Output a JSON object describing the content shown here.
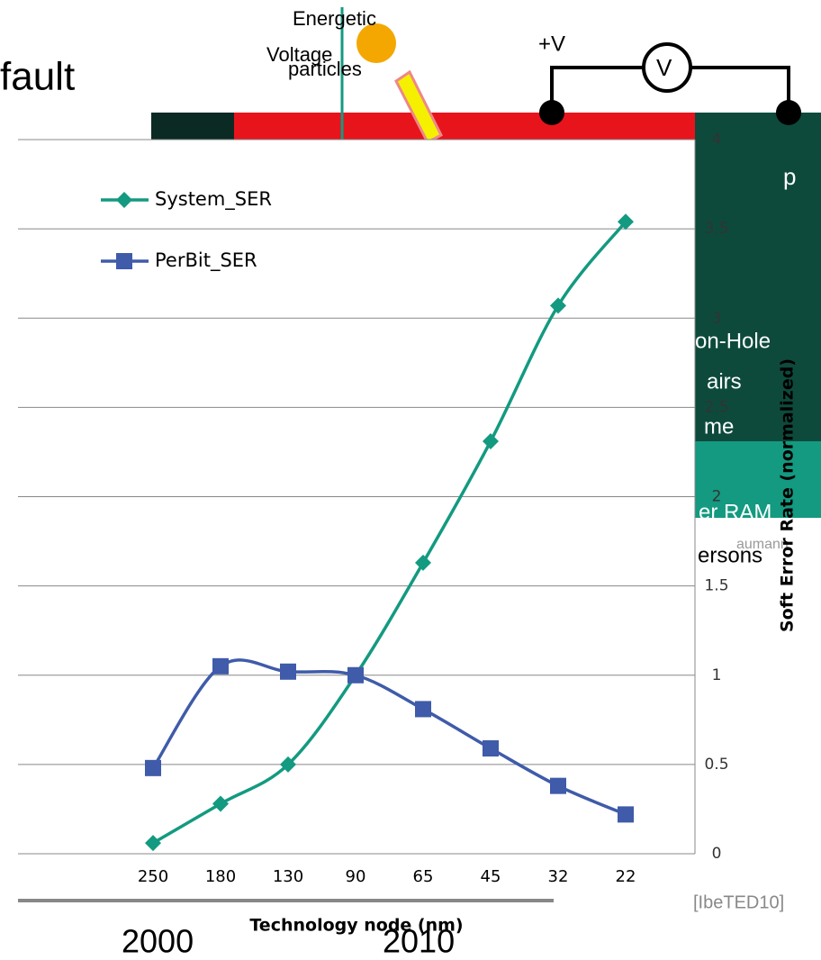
{
  "slide": {
    "fragments": [
      "fault",
      "Energetic",
      "particles",
      "Voltage",
      "+V",
      "V",
      "p",
      "on-Hole",
      "airs",
      "me",
      "er RAM",
      "aumann",
      "ersons",
      "[IbeTED10]",
      "2000",
      "2010"
    ]
  },
  "chart_data": {
    "type": "line",
    "x_label": "Technology node (nm)",
    "y_label": "Soft Error Rate (normalized)",
    "categories": [
      "250",
      "180",
      "130",
      "90",
      "65",
      "45",
      "32",
      "22"
    ],
    "series": [
      {
        "name": "System_SER",
        "color": "#139a80",
        "marker": "diamond",
        "values": [
          0.06,
          0.28,
          0.5,
          1.0,
          1.63,
          2.31,
          3.07,
          3.54
        ]
      },
      {
        "name": "PerBit_SER",
        "color": "#3f5ba9",
        "marker": "square",
        "values": [
          0.48,
          1.05,
          1.02,
          1.0,
          0.81,
          0.59,
          0.38,
          0.22
        ]
      }
    ],
    "ylim": [
      0,
      4
    ],
    "yticks": [
      0,
      0.5,
      1,
      1.5,
      2,
      2.5,
      3,
      3.5,
      4
    ],
    "grid": true,
    "legend": "top-left"
  }
}
